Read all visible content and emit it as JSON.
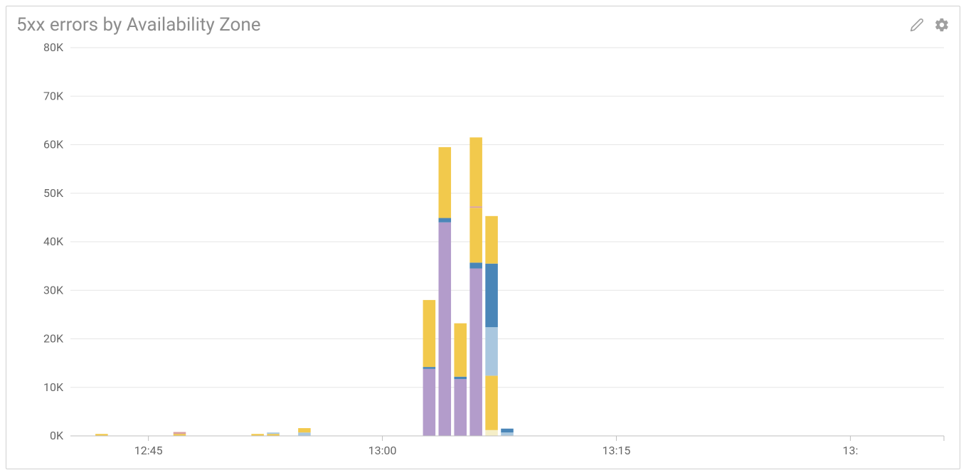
{
  "panel": {
    "title": "5xx errors by Availability Zone"
  },
  "chart": {
    "type": "stacked-bar",
    "background_color": "#ffffff",
    "grid_color": "#e6e6e6",
    "axis_color": "#bfbfbf",
    "tick_label_color": "#666666",
    "tick_fontsize": 16,
    "y": {
      "min": 0,
      "max": 80000,
      "ticks": [
        0,
        10000,
        20000,
        30000,
        40000,
        50000,
        60000,
        70000,
        80000
      ],
      "tick_labels": [
        "0K",
        "10K",
        "20K",
        "30K",
        "40K",
        "50K",
        "60K",
        "70K",
        "80K"
      ]
    },
    "x": {
      "min": 0,
      "max": 56,
      "ticks": [
        5,
        20,
        35,
        50,
        56
      ],
      "tick_labels": [
        "12:45",
        "13:00",
        "13:15",
        "13:",
        ""
      ]
    },
    "series_colors": {
      "purple": "#b39ccb",
      "yellow": "#f2c94c",
      "blue": "#4a86b8",
      "lightblue": "#a9c7df",
      "pink": "#d9a0a0",
      "cream": "#f5eec7"
    },
    "stacks": [
      {
        "x": 2,
        "segments": [
          {
            "series": "yellow",
            "value": 400
          }
        ]
      },
      {
        "x": 7,
        "segments": [
          {
            "series": "yellow",
            "value": 400
          },
          {
            "series": "pink",
            "value": 400
          }
        ]
      },
      {
        "x": 12,
        "segments": [
          {
            "series": "yellow",
            "value": 400
          }
        ]
      },
      {
        "x": 13,
        "segments": [
          {
            "series": "yellow",
            "value": 400
          },
          {
            "series": "lightblue",
            "value": 300
          }
        ]
      },
      {
        "x": 15,
        "segments": [
          {
            "series": "lightblue",
            "value": 700
          },
          {
            "series": "yellow",
            "value": 900
          }
        ]
      },
      {
        "x": 23,
        "segments": [
          {
            "series": "purple",
            "value": 13800
          },
          {
            "series": "blue",
            "value": 400
          },
          {
            "series": "yellow",
            "value": 13800
          }
        ]
      },
      {
        "x": 24,
        "segments": [
          {
            "series": "purple",
            "value": 44000
          },
          {
            "series": "blue",
            "value": 900
          },
          {
            "series": "yellow",
            "value": 14600
          }
        ]
      },
      {
        "x": 25,
        "segments": [
          {
            "series": "purple",
            "value": 11700
          },
          {
            "series": "blue",
            "value": 500
          },
          {
            "series": "yellow",
            "value": 11000
          }
        ]
      },
      {
        "x": 26,
        "segments": [
          {
            "series": "purple",
            "value": 34500
          },
          {
            "series": "blue",
            "value": 1200
          },
          {
            "series": "yellow",
            "value": 11300
          },
          {
            "series": "pink",
            "value": 300
          },
          {
            "series": "yellow",
            "value": 14200
          }
        ]
      },
      {
        "x": 27,
        "segments": [
          {
            "series": "cream",
            "value": 1200
          },
          {
            "series": "yellow",
            "value": 11200
          },
          {
            "series": "lightblue",
            "value": 10000
          },
          {
            "series": "blue",
            "value": 13100
          },
          {
            "series": "yellow",
            "value": 9800
          }
        ]
      },
      {
        "x": 28,
        "segments": [
          {
            "series": "lightblue",
            "value": 700
          },
          {
            "series": "blue",
            "value": 800
          }
        ]
      }
    ],
    "bar_width_ratio": 0.8
  }
}
